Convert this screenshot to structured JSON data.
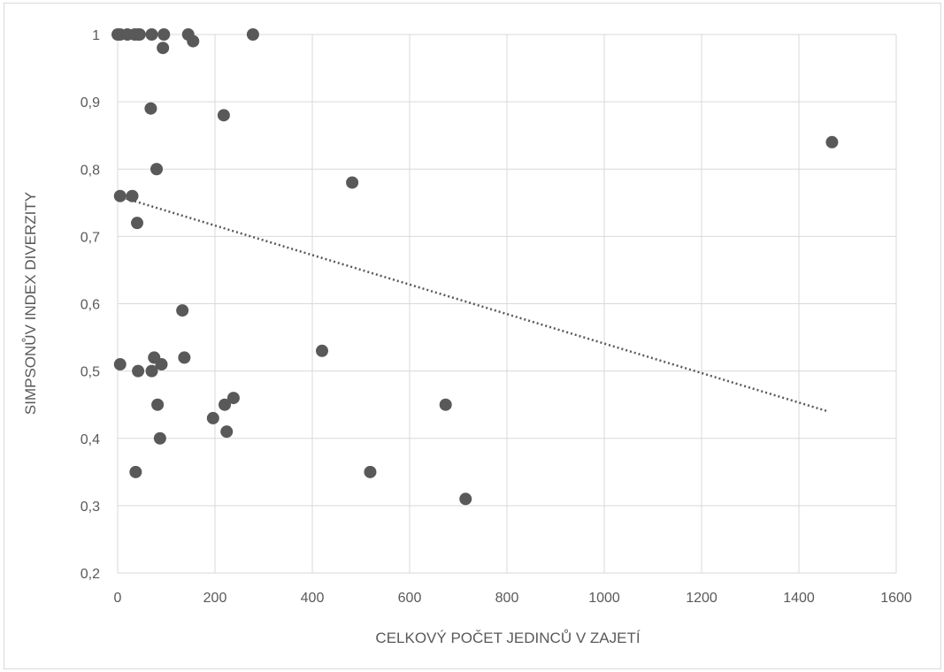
{
  "chart_data": {
    "type": "scatter",
    "title": "",
    "xlabel": "CELKOVÝ POČET JEDINCŮ V ZAJETÍ",
    "ylabel": "SIMPSONŮV INDEX DIVERZITY",
    "xlim": [
      0,
      1600
    ],
    "ylim": [
      0.2,
      1.0
    ],
    "x_ticks": [
      0,
      200,
      400,
      600,
      800,
      1000,
      1200,
      1400,
      1600
    ],
    "y_ticks": [
      0.2,
      0.3,
      0.4,
      0.5,
      0.6,
      0.7,
      0.8,
      0.9,
      1.0
    ],
    "y_tick_labels": [
      "0,2",
      "0,3",
      "0,4",
      "0,5",
      "0,6",
      "0,7",
      "0,8",
      "0,9",
      "1"
    ],
    "grid": true,
    "legend": "none",
    "marker_color": "#595959",
    "trendline": {
      "type": "linear",
      "style": "dotted",
      "color": "#595959",
      "x": [
        0,
        1460
      ],
      "y": [
        0.76,
        0.44
      ]
    },
    "points": [
      {
        "x": 0,
        "y": 1.0
      },
      {
        "x": 5,
        "y": 1.0
      },
      {
        "x": 20,
        "y": 1.0
      },
      {
        "x": 35,
        "y": 1.0
      },
      {
        "x": 42,
        "y": 1.0
      },
      {
        "x": 45,
        "y": 1.0
      },
      {
        "x": 70,
        "y": 1.0
      },
      {
        "x": 95,
        "y": 1.0
      },
      {
        "x": 145,
        "y": 1.0
      },
      {
        "x": 278,
        "y": 1.0
      },
      {
        "x": 155,
        "y": 0.99
      },
      {
        "x": 93,
        "y": 0.98
      },
      {
        "x": 68,
        "y": 0.89
      },
      {
        "x": 218,
        "y": 0.88
      },
      {
        "x": 1468,
        "y": 0.84
      },
      {
        "x": 80,
        "y": 0.8
      },
      {
        "x": 482,
        "y": 0.78
      },
      {
        "x": 5,
        "y": 0.76
      },
      {
        "x": 30,
        "y": 0.76
      },
      {
        "x": 40,
        "y": 0.72
      },
      {
        "x": 133,
        "y": 0.59
      },
      {
        "x": 420,
        "y": 0.53
      },
      {
        "x": 75,
        "y": 0.52
      },
      {
        "x": 137,
        "y": 0.52
      },
      {
        "x": 5,
        "y": 0.51
      },
      {
        "x": 90,
        "y": 0.51
      },
      {
        "x": 42,
        "y": 0.5
      },
      {
        "x": 70,
        "y": 0.5
      },
      {
        "x": 238,
        "y": 0.46
      },
      {
        "x": 82,
        "y": 0.45
      },
      {
        "x": 220,
        "y": 0.45
      },
      {
        "x": 674,
        "y": 0.45
      },
      {
        "x": 196,
        "y": 0.43
      },
      {
        "x": 224,
        "y": 0.41
      },
      {
        "x": 87,
        "y": 0.4
      },
      {
        "x": 37,
        "y": 0.35
      },
      {
        "x": 519,
        "y": 0.35
      },
      {
        "x": 715,
        "y": 0.31
      }
    ]
  }
}
